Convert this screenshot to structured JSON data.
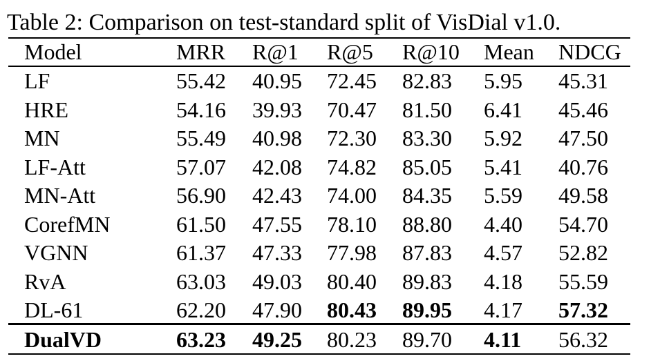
{
  "caption": "Table 2: Comparison on test-standard split of VisDial v1.0.",
  "table": {
    "header": [
      "Model",
      "MRR",
      "R@1",
      "R@5",
      "R@10",
      "Mean",
      "NDCG"
    ],
    "rows": [
      [
        "LF",
        "55.42",
        "40.95",
        "72.45",
        "82.83",
        "5.95",
        "45.31"
      ],
      [
        "HRE",
        "54.16",
        "39.93",
        "70.47",
        "81.50",
        "6.41",
        "45.46"
      ],
      [
        "MN",
        "55.49",
        "40.98",
        "72.30",
        "83.30",
        "5.92",
        "47.50"
      ],
      [
        "LF-Att",
        "57.07",
        "42.08",
        "74.82",
        "85.05",
        "5.41",
        "40.76"
      ],
      [
        "MN-Att",
        "56.90",
        "42.43",
        "74.00",
        "84.35",
        "5.59",
        "49.58"
      ],
      [
        "CorefMN",
        "61.50",
        "47.55",
        "78.10",
        "88.80",
        "4.40",
        "54.70"
      ],
      [
        "VGNN",
        "61.37",
        "47.33",
        "77.98",
        "87.83",
        "4.57",
        "52.82"
      ],
      [
        "RvA",
        "63.03",
        "49.03",
        "80.40",
        "89.83",
        "4.18",
        "55.59"
      ],
      [
        "DL-61",
        "62.20",
        "47.90",
        "80.43",
        "89.95",
        "4.17",
        "57.32"
      ],
      [
        "DualVD",
        "63.23",
        "49.25",
        "80.23",
        "89.70",
        "4.11",
        "56.32"
      ]
    ],
    "bold_cells": [
      [
        8,
        3
      ],
      [
        8,
        4
      ],
      [
        8,
        6
      ],
      [
        9,
        0
      ],
      [
        9,
        1
      ],
      [
        9,
        2
      ],
      [
        9,
        5
      ]
    ]
  }
}
